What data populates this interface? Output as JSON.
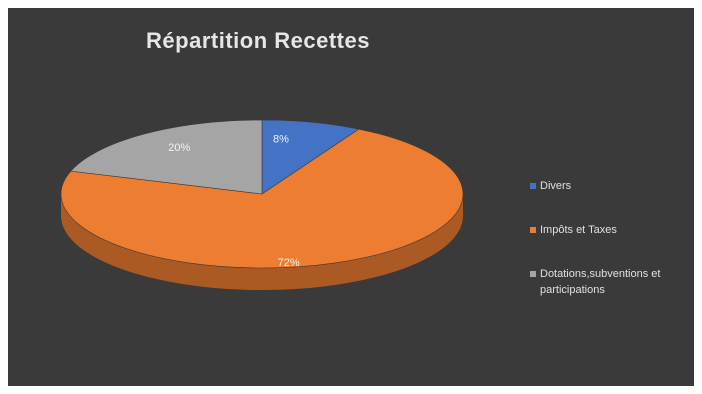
{
  "chart_data": {
    "type": "pie",
    "title": "Répartition Recettes",
    "categories": [
      "Divers",
      "Impôts et Taxes",
      "Dotations,subventions et participations"
    ],
    "values": [
      8,
      72,
      20
    ],
    "value_labels": [
      "8%",
      "72%",
      "20%"
    ],
    "colors": [
      "#4472c4",
      "#ed7d31",
      "#a5a5a5"
    ],
    "legend_position": "right",
    "style": "3d"
  }
}
